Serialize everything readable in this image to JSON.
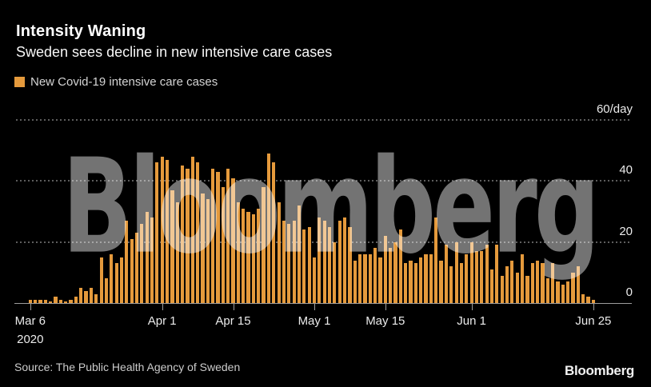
{
  "header": {
    "title": "Intensity Waning",
    "subtitle": "Sweden sees decline in new intensive care cases"
  },
  "legend": {
    "label": "New Covid-19 intensive care cases",
    "swatch_color": "#E59A3C"
  },
  "watermark": "Bloomberg",
  "footer": {
    "source": "Source: The Public Health Agency of Sweden",
    "logo": "Bloomberg"
  },
  "chart_data": {
    "type": "bar",
    "title": "Intensity Waning",
    "subtitle": "Sweden sees decline in new intensive care cases",
    "series_label": "New Covid-19 intensive care cases",
    "frequency": "daily",
    "date_span": "Mar 6, 2020 - Jun 25, 2020",
    "bar_color": "#E59A3C",
    "grid": "horizontal dotted",
    "legend_position": "top-left",
    "y_axis_side": "right",
    "ylim": [
      0,
      62
    ],
    "y_ticks": [
      {
        "value": 0,
        "label": "0"
      },
      {
        "value": 20,
        "label": "20"
      },
      {
        "value": 40,
        "label": "40"
      },
      {
        "value": 60,
        "label": "60/day"
      }
    ],
    "x_ticks": [
      {
        "day": 0,
        "label": "Mar 6",
        "sublabel": "2020"
      },
      {
        "day": 26,
        "label": "Apr 1"
      },
      {
        "day": 40,
        "label": "Apr 15"
      },
      {
        "day": 56,
        "label": "May 1"
      },
      {
        "day": 70,
        "label": "May 15"
      },
      {
        "day": 87,
        "label": "Jun 1"
      },
      {
        "day": 111,
        "label": "Jun 25"
      }
    ],
    "values": [
      1,
      1,
      1,
      1,
      0.5,
      2,
      1,
      0.5,
      1,
      2,
      5,
      4,
      5,
      3,
      15,
      8,
      16,
      13,
      15,
      27,
      21,
      23,
      26,
      30,
      28,
      46,
      48,
      47,
      37,
      33,
      45,
      44,
      48,
      46,
      36,
      34,
      44,
      43,
      38,
      44,
      41,
      33,
      31,
      30,
      29,
      31,
      38,
      49,
      46,
      33,
      27,
      26,
      27,
      32,
      24,
      25,
      15,
      28,
      27,
      25,
      20,
      27,
      28,
      25,
      14,
      16,
      16,
      16,
      18,
      15,
      22,
      18,
      20,
      24,
      13,
      14,
      13,
      15,
      16,
      16,
      28,
      14,
      19,
      12,
      20,
      13,
      16,
      20,
      17,
      17,
      19,
      11,
      19,
      9,
      12,
      14,
      10,
      16,
      9,
      13,
      14,
      13,
      8,
      13,
      7,
      6,
      7,
      10,
      12,
      3,
      2,
      1
    ]
  }
}
